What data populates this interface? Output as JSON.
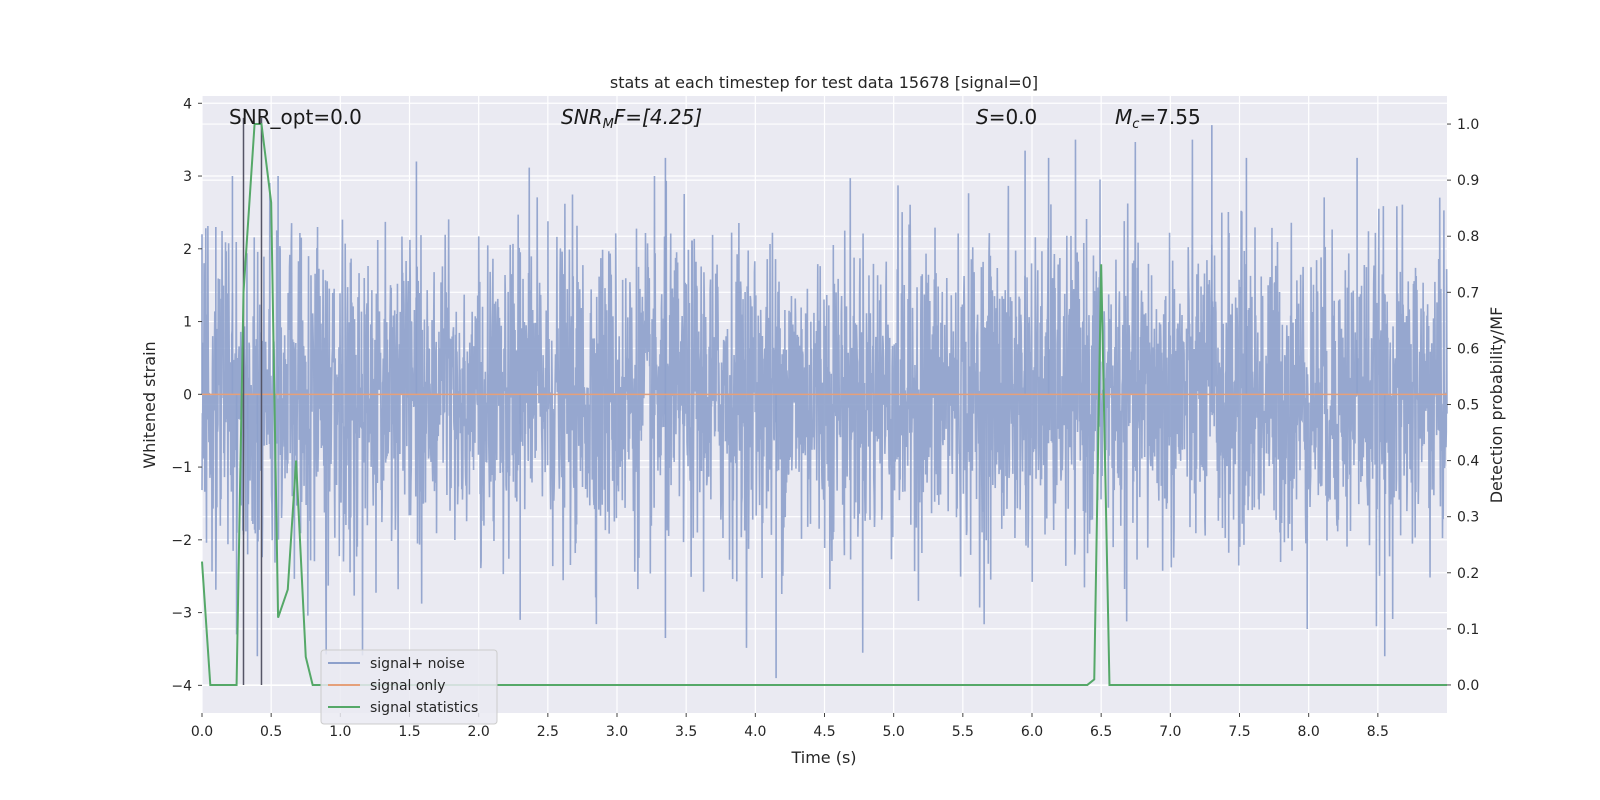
{
  "chart_data": {
    "type": "line",
    "title": "stats at each timestep for test data 15678 [signal=0]",
    "xlabel": "Time (s)",
    "ylabel_left": "Whitened strain",
    "ylabel_right": "Detection probability/MF",
    "xlim": [
      0,
      9.0
    ],
    "ylim_left": [
      -4.38,
      4.1
    ],
    "ylim_right": [
      -0.05,
      1.05
    ],
    "grid": true,
    "legend_position": "lower-left",
    "x_ticks": [
      "0.0",
      "0.5",
      "1.0",
      "1.5",
      "2.0",
      "2.5",
      "3.0",
      "3.5",
      "4.0",
      "4.5",
      "5.0",
      "5.5",
      "6.0",
      "6.5",
      "7.0",
      "7.5",
      "8.0",
      "8.5"
    ],
    "y_ticks_left": [
      "−4",
      "−3",
      "−2",
      "−1",
      "0",
      "1",
      "2",
      "3",
      "4"
    ],
    "y_ticks_right": [
      "0.0",
      "0.1",
      "0.2",
      "0.3",
      "0.4",
      "0.5",
      "0.6",
      "0.7",
      "0.8",
      "0.9",
      "1.0"
    ],
    "annotations": {
      "snr_opt": "SNR_opt=0.0",
      "snr_mf_sym": "SNR",
      "snr_mf_sub": "M",
      "snr_mf_rest": "F=[4.25]",
      "s_sym": "S",
      "s_rest": "=0.0",
      "mc_sym": "M",
      "mc_sub": "c",
      "mc_rest": "=7.55"
    },
    "vertical_lines_x": [
      0.3,
      0.43
    ],
    "series": [
      {
        "name": "signal+ noise",
        "color": "#8da0cb",
        "description_range": "noise fluctuating roughly between -3.9 and 3.7",
        "peak_points": [
          [
            0.0,
            2.2
          ],
          [
            0.1,
            2.3
          ],
          [
            0.22,
            3.0
          ],
          [
            0.25,
            -3.3
          ],
          [
            0.33,
            -2.2
          ],
          [
            0.4,
            -3.6
          ],
          [
            0.55,
            3.0
          ],
          [
            1.55,
            3.2
          ],
          [
            2.3,
            -3.1
          ],
          [
            3.35,
            3.25
          ],
          [
            3.35,
            -3.35
          ],
          [
            4.15,
            -3.9
          ],
          [
            5.95,
            3.35
          ],
          [
            6.12,
            3.25
          ],
          [
            7.3,
            3.7
          ],
          [
            7.55,
            3.25
          ],
          [
            8.35,
            3.25
          ],
          [
            8.55,
            -3.6
          ]
        ]
      },
      {
        "name": "signal only",
        "color": "#e5a07a",
        "values_note": "flat at 0",
        "points": [
          [
            0.0,
            0.0
          ],
          [
            9.0,
            0.0
          ]
        ]
      },
      {
        "name": "signal statistics",
        "color": "#55a868",
        "axis": "right",
        "points": [
          [
            0.0,
            0.22
          ],
          [
            0.06,
            0.0
          ],
          [
            0.25,
            0.0
          ],
          [
            0.3,
            0.7
          ],
          [
            0.38,
            1.0
          ],
          [
            0.43,
            1.0
          ],
          [
            0.5,
            0.86
          ],
          [
            0.55,
            0.12
          ],
          [
            0.62,
            0.17
          ],
          [
            0.68,
            0.4
          ],
          [
            0.75,
            0.05
          ],
          [
            0.8,
            0.0
          ],
          [
            6.4,
            0.0
          ],
          [
            6.45,
            0.01
          ],
          [
            6.5,
            0.75
          ],
          [
            6.56,
            0.0
          ],
          [
            9.0,
            0.0
          ]
        ]
      }
    ]
  }
}
